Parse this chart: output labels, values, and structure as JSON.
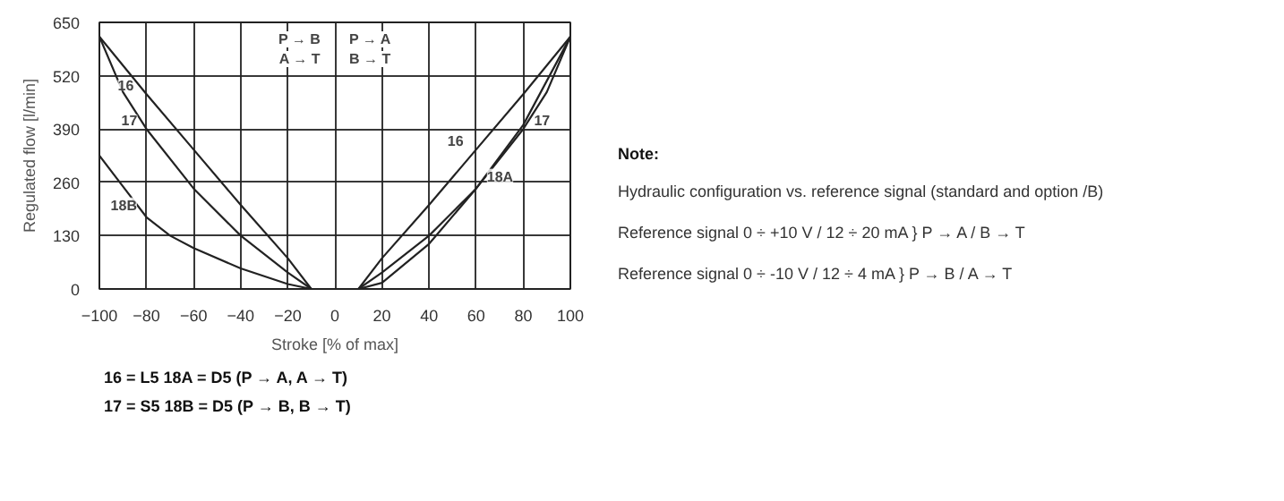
{
  "chart_data": {
    "type": "line",
    "xlabel": "Stroke [% of max]",
    "ylabel": "Regulated flow [l/min]",
    "xlim": [
      -100,
      100
    ],
    "ylim": [
      0,
      650
    ],
    "xticks": [
      -100,
      -80,
      -60,
      -40,
      -20,
      0,
      20,
      40,
      60,
      80,
      100
    ],
    "yticks": [
      0,
      130,
      260,
      390,
      520,
      650
    ],
    "grid": true,
    "marker": "none",
    "line_style": "solid",
    "series": [
      {
        "name": "16",
        "color": "#222222",
        "x": [
          -100,
          -80,
          -60,
          -40,
          -20,
          -10
        ],
        "values": [
          615,
          475,
          340,
          205,
          75,
          0
        ]
      },
      {
        "name": "17",
        "color": "#222222",
        "x": [
          -100,
          -90,
          -80,
          -60,
          -40,
          -20,
          -10
        ],
        "values": [
          615,
          480,
          390,
          245,
          130,
          40,
          0
        ]
      },
      {
        "name": "18B",
        "color": "#222222",
        "x": [
          -100,
          -90,
          -80,
          -70,
          -60,
          -40,
          -20,
          -10
        ],
        "values": [
          325,
          250,
          175,
          130,
          100,
          50,
          12,
          0
        ]
      },
      {
        "name": "16",
        "color": "#222222",
        "x": [
          10,
          20,
          40,
          60,
          80,
          100
        ],
        "values": [
          0,
          75,
          205,
          340,
          475,
          615
        ]
      },
      {
        "name": "17",
        "color": "#222222",
        "x": [
          10,
          20,
          40,
          60,
          80,
          90,
          100
        ],
        "values": [
          0,
          40,
          130,
          245,
          390,
          480,
          615
        ]
      },
      {
        "name": "18A",
        "color": "#222222",
        "x": [
          10,
          20,
          40,
          60,
          80,
          100
        ],
        "values": [
          0,
          15,
          110,
          245,
          400,
          615
        ]
      }
    ],
    "annotations": [
      "P → B\nA → T",
      "P → A\nB → T",
      "16 = L5    18A = D5 (P → A, A → T)",
      "17 = S5    18B = D5 (P → B, B → T)",
      "Note:",
      "Hydraulic configuration vs. reference signal (standard and option /B)",
      "Reference signal  0 ÷ +10 V / 12 ÷ 20 mA  } P → A / B → T",
      "Reference signal  0 ÷ -10 V / 12 ÷ 4 mA  } P → B / A → T"
    ]
  }
}
